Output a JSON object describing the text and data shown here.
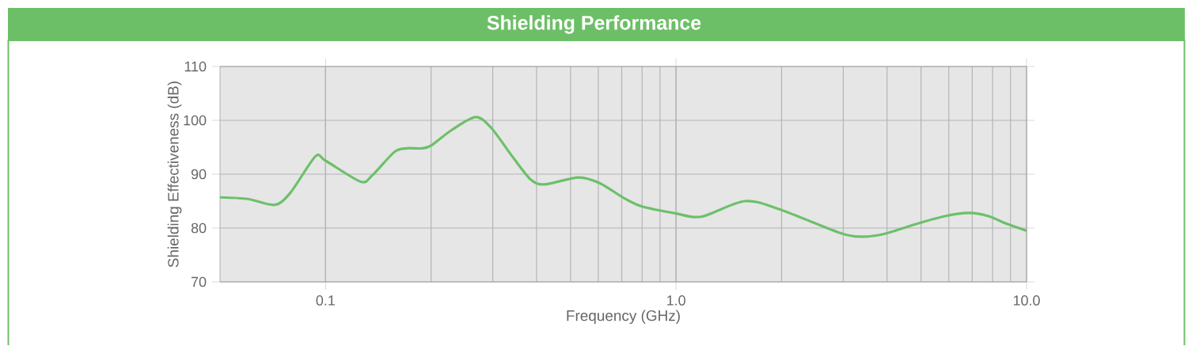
{
  "chart_data": {
    "type": "line",
    "title": "Shielding Performance",
    "xlabel": "Frequency (GHz)",
    "ylabel": "Shielding Effectiveness (dB)",
    "log": "x",
    "grid": true,
    "xlim": [
      0.05,
      10
    ],
    "ylim": [
      70,
      110
    ],
    "xticks": [
      0.1,
      {
        "value": 1,
        "label": "1.0"
      },
      {
        "value": 10,
        "label": "10.0"
      }
    ],
    "yticks": [
      70,
      80,
      90,
      100,
      110
    ],
    "series": [
      {
        "color": "#6cc06a",
        "x": [
          0.05,
          0.06,
          0.0716,
          0.0795,
          0.0935,
          0.1,
          0.126,
          0.136,
          0.157,
          0.17,
          0.189,
          0.201,
          0.229,
          0.268,
          0.297,
          0.342,
          0.385,
          0.421,
          0.527,
          0.607,
          0.713,
          0.8,
          1.0,
          1.18,
          1.57,
          1.97,
          2.96,
          3.4,
          3.92,
          4.88,
          5.85,
          6.84,
          7.79,
          8.77,
          10
        ],
        "values": [
          85.7,
          85.4,
          84.3,
          86.6,
          93.3,
          92.5,
          88.6,
          89.8,
          94.1,
          94.8,
          94.8,
          95.4,
          98.2,
          100.6,
          98.6,
          93.2,
          89.0,
          88.1,
          89.4,
          88.3,
          85.5,
          84.0,
          82.7,
          82.1,
          85.0,
          83.5,
          79.0,
          78.4,
          78.9,
          80.8,
          82.2,
          82.8,
          82.2,
          80.8,
          79.5
        ]
      }
    ]
  }
}
